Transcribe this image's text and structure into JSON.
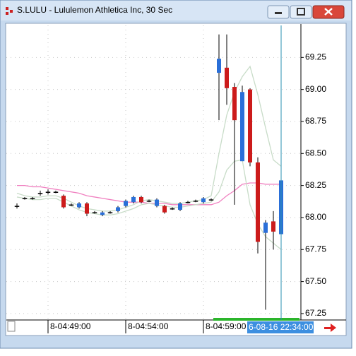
{
  "chart_data": {
    "type": "candlestick",
    "title": "S.LULU - Lululemon Athletica Inc, 30 Sec",
    "categories": [
      null,
      null,
      null,
      null,
      "8-04:49:00",
      null,
      null,
      null,
      null,
      null,
      null,
      null,
      null,
      null,
      "8-04:54:00",
      null,
      null,
      null,
      null,
      null,
      null,
      null,
      null,
      null,
      "8-04:59:00",
      null,
      null,
      null,
      null,
      null,
      null,
      null,
      null,
      null,
      null
    ],
    "open": [
      68.09,
      68.15,
      68.15,
      68.19,
      68.2,
      68.2,
      68.17,
      68.1,
      68.08,
      68.11,
      68.04,
      68.02,
      68.04,
      68.05,
      68.09,
      68.12,
      68.16,
      68.13,
      68.09,
      68.09,
      68.07,
      68.06,
      68.12,
      68.13,
      68.12,
      68.14,
      69.13,
      69.17,
      69.02,
      68.44,
      69.0,
      68.43,
      67.88,
      67.97,
      67.87
    ],
    "high": [
      68.11,
      68.16,
      68.16,
      68.21,
      68.22,
      68.21,
      68.18,
      68.11,
      68.12,
      68.12,
      68.05,
      68.05,
      68.05,
      68.09,
      68.14,
      68.17,
      68.17,
      68.14,
      68.15,
      68.1,
      68.08,
      68.12,
      68.13,
      68.14,
      68.16,
      68.15,
      69.43,
      69.43,
      69.05,
      69.03,
      69.01,
      68.47,
      67.98,
      68.05,
      68.33
    ],
    "low": [
      68.07,
      68.14,
      68.14,
      68.17,
      68.18,
      68.19,
      68.07,
      68.09,
      68.07,
      68.01,
      68.03,
      68.01,
      68.03,
      68.04,
      68.08,
      68.11,
      68.11,
      68.12,
      68.08,
      68.03,
      68.06,
      68.05,
      68.11,
      68.12,
      68.11,
      68.13,
      68.76,
      68.88,
      68.1,
      68.44,
      68.4,
      67.72,
      67.28,
      67.75,
      67.73
    ],
    "close": [
      68.09,
      68.15,
      68.15,
      68.19,
      68.2,
      68.2,
      68.08,
      68.1,
      68.11,
      68.03,
      68.04,
      68.04,
      68.04,
      68.08,
      68.13,
      68.16,
      68.12,
      68.13,
      68.14,
      68.04,
      68.07,
      68.11,
      68.12,
      68.13,
      68.15,
      68.14,
      69.24,
      69.01,
      68.76,
      68.98,
      68.43,
      67.81,
      67.96,
      67.89,
      68.29
    ],
    "up_color": "#2a6fd8",
    "down_color": "#cc1b1b",
    "series": [
      {
        "color": "#f080c0",
        "values": [
          68.25,
          68.25,
          68.24,
          68.24,
          68.23,
          68.22,
          68.21,
          68.2,
          68.19,
          68.17,
          68.16,
          68.15,
          68.14,
          68.13,
          68.12,
          68.12,
          68.12,
          68.11,
          68.11,
          68.11,
          68.1,
          68.1,
          68.1,
          68.1,
          68.1,
          68.1,
          68.12,
          68.17,
          68.21,
          68.26,
          68.27,
          68.27,
          68.26,
          68.26,
          68.26
        ]
      },
      {
        "color": "#c8dcc8",
        "values": [
          68.19,
          68.17,
          68.16,
          68.16,
          68.17,
          68.17,
          68.15,
          68.12,
          68.09,
          68.07,
          68.06,
          68.05,
          68.05,
          68.06,
          68.08,
          68.1,
          68.13,
          68.14,
          68.13,
          68.12,
          68.11,
          68.11,
          68.12,
          68.13,
          68.14,
          68.17,
          68.5,
          68.8,
          68.98,
          69.1,
          69.18,
          68.96,
          68.7,
          68.45,
          68.4
        ]
      },
      {
        "color": "#c8dcc8",
        "values": [
          68.16,
          68.15,
          68.14,
          68.14,
          68.15,
          68.15,
          68.12,
          68.09,
          68.06,
          68.04,
          68.03,
          68.02,
          68.02,
          68.03,
          68.05,
          68.07,
          68.1,
          68.11,
          68.1,
          68.09,
          68.08,
          68.08,
          68.09,
          68.1,
          68.11,
          68.12,
          68.2,
          68.37,
          68.44,
          68.45,
          68.1,
          67.95,
          67.85,
          67.8,
          67.75
        ]
      }
    ],
    "ylim": [
      67.2,
      69.5
    ],
    "yticks": [
      67.25,
      {
        "value": 67.5,
        "label": "67.50"
      },
      67.75,
      {
        "value": 68,
        "label": "68.00"
      },
      68.25,
      {
        "value": 68.5,
        "label": "68.50"
      },
      68.75,
      {
        "value": 69,
        "label": "69.00"
      },
      69.25
    ],
    "grid": true,
    "cursor_label": "6-08-16 22:34:00"
  }
}
